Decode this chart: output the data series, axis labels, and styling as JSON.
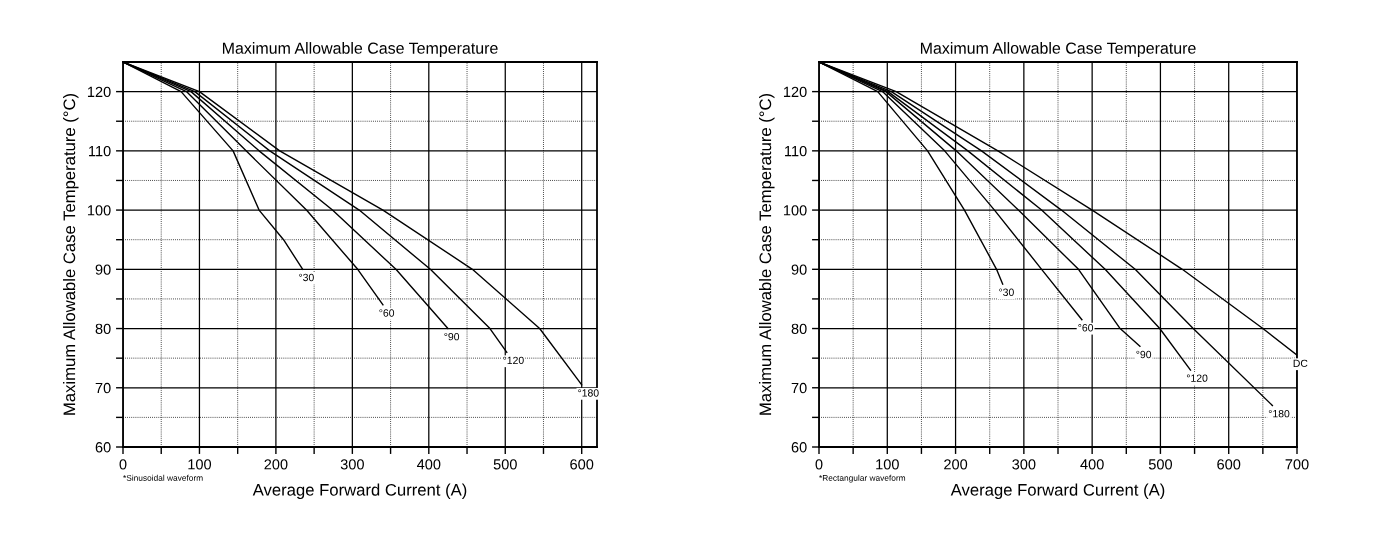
{
  "chart_data": [
    {
      "type": "line",
      "title": "Maximum Allowable Case Temperature",
      "xlabel": "Average Forward Current (A)",
      "ylabel": "Maximum Allowable Case Temperature (°C)",
      "xlim": [
        0,
        620
      ],
      "ylim": [
        60,
        125
      ],
      "xticks": [
        0,
        {
          "value": 50,
          "label": null
        },
        100,
        {
          "value": 150,
          "label": null
        },
        200,
        {
          "value": 250,
          "label": null
        },
        300,
        {
          "value": 350,
          "label": null
        },
        400,
        {
          "value": 450,
          "label": null
        },
        500,
        {
          "value": 550,
          "label": null
        },
        600
      ],
      "yticks": [
        60,
        {
          "value": 65,
          "label": null
        },
        70,
        {
          "value": 75,
          "label": null
        },
        80,
        {
          "value": 85,
          "label": null
        },
        90,
        {
          "value": 95,
          "label": null
        },
        100,
        {
          "value": 105,
          "label": null
        },
        110,
        {
          "value": 115,
          "label": null
        },
        120
      ],
      "grid": true,
      "marker": "none",
      "line_style": "solid",
      "series": [
        {
          "color": "#000000",
          "x": [
            0,
            76,
            144,
            178,
            210,
            235
          ],
          "values": [
            125,
            120,
            110,
            100,
            95,
            90
          ]
        },
        {
          "color": "#000000",
          "x": [
            0,
            83,
            161,
            240,
            307,
            340
          ],
          "values": [
            125,
            120,
            110,
            100,
            90,
            84
          ]
        },
        {
          "color": "#000000",
          "x": [
            0,
            89,
            178,
            274,
            357,
            425
          ],
          "values": [
            125,
            120,
            110,
            100,
            90,
            80
          ]
        },
        {
          "color": "#000000",
          "x": [
            0,
            94,
            192,
            309,
            402,
            480,
            502
          ],
          "values": [
            125,
            120,
            110,
            100,
            90,
            80,
            76
          ]
        },
        {
          "color": "#000000",
          "x": [
            0,
            100,
            205,
            340,
            457,
            545,
            600
          ],
          "values": [
            125,
            120,
            110,
            100,
            90,
            80,
            70.5
          ]
        }
      ],
      "annotations": [
        {
          "text": "°30",
          "x": 235,
          "y": 90
        },
        {
          "text": "°60",
          "x": 340,
          "y": 84
        },
        {
          "text": "°90",
          "x": 425,
          "y": 80
        },
        {
          "text": "°120",
          "x": 502,
          "y": 76
        },
        {
          "text": "°180",
          "x": 600,
          "y": 70.5
        },
        "*Sinusoidal waveform"
      ]
    },
    {
      "type": "line",
      "title": "Maximum Allowable Case Temperature",
      "xlabel": "Average Forward Current (A)",
      "ylabel": "Maximum Allowable Case Temperature (°C)",
      "xlim": [
        0,
        700
      ],
      "ylim": [
        60,
        125
      ],
      "xticks": [
        0,
        {
          "value": 50,
          "label": null
        },
        100,
        {
          "value": 150,
          "label": null
        },
        200,
        {
          "value": 250,
          "label": null
        },
        300,
        {
          "value": 350,
          "label": null
        },
        400,
        {
          "value": 450,
          "label": null
        },
        500,
        {
          "value": 550,
          "label": null
        },
        600,
        {
          "value": 650,
          "label": null
        },
        700
      ],
      "yticks": [
        60,
        {
          "value": 65,
          "label": null
        },
        70,
        {
          "value": 75,
          "label": null
        },
        80,
        {
          "value": 85,
          "label": null
        },
        90,
        {
          "value": 95,
          "label": null
        },
        100,
        {
          "value": 105,
          "label": null
        },
        110,
        {
          "value": 115,
          "label": null
        },
        120
      ],
      "grid": true,
      "marker": "none",
      "line_style": "solid",
      "series": [
        {
          "color": "#000000",
          "x": [
            0,
            86,
            159,
            213,
            260,
            269
          ],
          "values": [
            125,
            120,
            110,
            100,
            90,
            87.5
          ]
        },
        {
          "color": "#000000",
          "x": [
            0,
            93,
            184,
            257,
            326,
            385
          ],
          "values": [
            125,
            120,
            110,
            100,
            90,
            81.5
          ]
        },
        {
          "color": "#000000",
          "x": [
            0,
            98,
            201,
            292,
            380,
            441,
            470
          ],
          "values": [
            125,
            120,
            110,
            100,
            90,
            80,
            77
          ]
        },
        {
          "color": "#000000",
          "x": [
            0,
            101,
            218,
            326,
            419,
            499,
            544
          ],
          "values": [
            125,
            120,
            110,
            100,
            90,
            80,
            73
          ]
        },
        {
          "color": "#000000",
          "x": [
            0,
            106,
            238,
            355,
            463,
            548,
            664
          ],
          "values": [
            125,
            120,
            110,
            100,
            90,
            80,
            67
          ]
        },
        {
          "color": "#000000",
          "x": [
            0,
            113,
            262,
            400,
            532,
            650,
            700
          ],
          "values": [
            125,
            120,
            110,
            100,
            90,
            80,
            75.5
          ]
        }
      ],
      "annotations": [
        {
          "text": "°30",
          "x": 269,
          "y": 87.5
        },
        {
          "text": "°60",
          "x": 385,
          "y": 81.5
        },
        {
          "text": "°90",
          "x": 470,
          "y": 77
        },
        {
          "text": "°120",
          "x": 544,
          "y": 73
        },
        {
          "text": "°180",
          "x": 664,
          "y": 67
        },
        {
          "text": "DC",
          "x": 700,
          "y": 75.5
        },
        "*Rectangular waveform"
      ]
    }
  ]
}
